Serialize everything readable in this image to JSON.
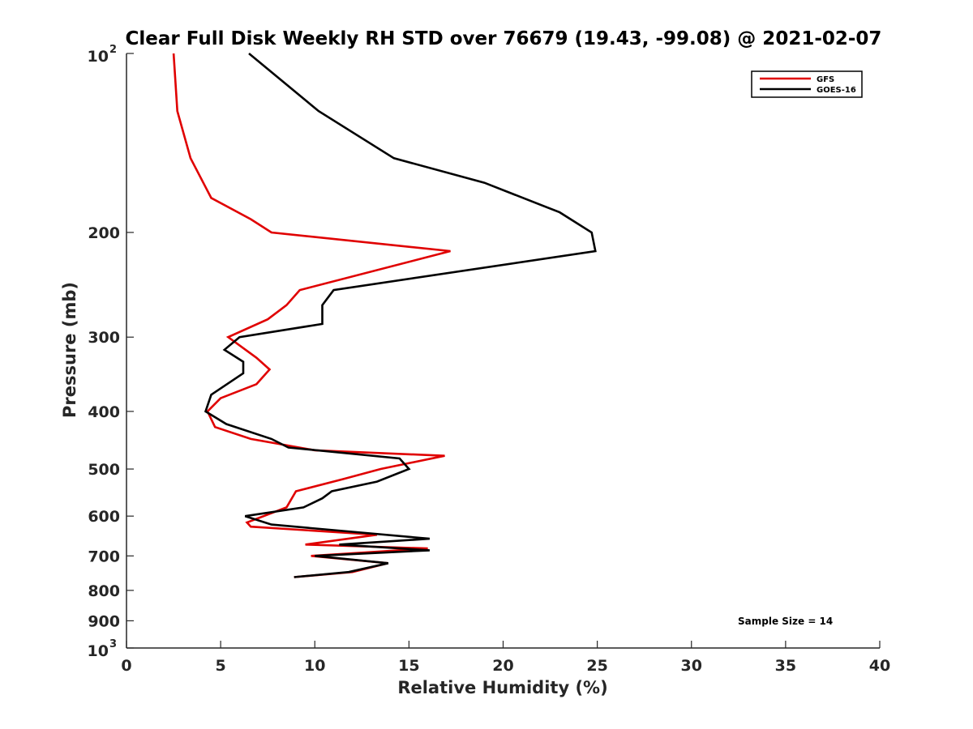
{
  "chart_data": {
    "type": "line",
    "title": "Clear Full Disk Weekly RH STD over 76679 (19.43, -99.08) @ 2021-02-07",
    "xlabel": "Relative Humidity (%)",
    "ylabel": "Pressure (mb)",
    "xlim": [
      0,
      40
    ],
    "ylim": [
      100,
      1000
    ],
    "yscale": "log",
    "y_reversed": true,
    "grid": false,
    "legend_position": "top-right",
    "x_ticks": [
      "0",
      "5",
      "10",
      "15",
      "20",
      "25",
      "30",
      "35",
      "40"
    ],
    "y_ticks": [
      {
        "value": 100,
        "base": "10",
        "exp": "2"
      },
      {
        "value": 200,
        "label": "200"
      },
      {
        "value": 300,
        "label": "300"
      },
      {
        "value": 400,
        "label": "400"
      },
      {
        "value": 500,
        "label": "500"
      },
      {
        "value": 600,
        "label": "600"
      },
      {
        "value": 700,
        "label": "700"
      },
      {
        "value": 800,
        "label": "800"
      },
      {
        "value": 900,
        "label": "900"
      },
      {
        "value": 1000,
        "base": "10",
        "exp": "3"
      }
    ],
    "series": [
      {
        "name": "GFS",
        "color": "#e00000",
        "points": [
          [
            2.5,
            100
          ],
          [
            2.7,
            125
          ],
          [
            3.4,
            150
          ],
          [
            4.5,
            175
          ],
          [
            6.6,
            190
          ],
          [
            7.7,
            200
          ],
          [
            17.2,
            215
          ],
          [
            9.2,
            250
          ],
          [
            8.5,
            265
          ],
          [
            7.5,
            280
          ],
          [
            5.4,
            300
          ],
          [
            6.9,
            325
          ],
          [
            7.6,
            340
          ],
          [
            6.9,
            360
          ],
          [
            5.0,
            380
          ],
          [
            4.3,
            400
          ],
          [
            4.7,
            425
          ],
          [
            6.6,
            445
          ],
          [
            10.0,
            465
          ],
          [
            16.9,
            475
          ],
          [
            13.5,
            500
          ],
          [
            11.5,
            520
          ],
          [
            9.0,
            545
          ],
          [
            8.5,
            580
          ],
          [
            6.4,
            615
          ],
          [
            6.6,
            625
          ],
          [
            13.3,
            645
          ],
          [
            9.5,
            670
          ],
          [
            16.0,
            680
          ],
          [
            9.8,
            700
          ],
          [
            13.9,
            720
          ],
          [
            12.0,
            745
          ],
          [
            8.9,
            760
          ]
        ]
      },
      {
        "name": "GOES-16",
        "color": "#000000",
        "points": [
          [
            6.5,
            100
          ],
          [
            10.2,
            125
          ],
          [
            14.2,
            150
          ],
          [
            19.0,
            165
          ],
          [
            23.0,
            185
          ],
          [
            24.7,
            200
          ],
          [
            24.9,
            215
          ],
          [
            11.0,
            250
          ],
          [
            10.4,
            265
          ],
          [
            10.4,
            285
          ],
          [
            6.0,
            300
          ],
          [
            5.2,
            315
          ],
          [
            6.2,
            330
          ],
          [
            6.2,
            345
          ],
          [
            4.5,
            375
          ],
          [
            4.2,
            400
          ],
          [
            5.3,
            420
          ],
          [
            7.7,
            445
          ],
          [
            8.6,
            460
          ],
          [
            14.5,
            480
          ],
          [
            15.0,
            500
          ],
          [
            13.3,
            525
          ],
          [
            10.9,
            545
          ],
          [
            10.4,
            560
          ],
          [
            9.4,
            580
          ],
          [
            6.3,
            600
          ],
          [
            7.7,
            620
          ],
          [
            16.1,
            655
          ],
          [
            11.3,
            670
          ],
          [
            16.1,
            685
          ],
          [
            10.0,
            700
          ],
          [
            13.9,
            720
          ],
          [
            11.8,
            745
          ],
          [
            8.9,
            760
          ]
        ]
      }
    ],
    "annotation": "Sample Size = 14"
  }
}
